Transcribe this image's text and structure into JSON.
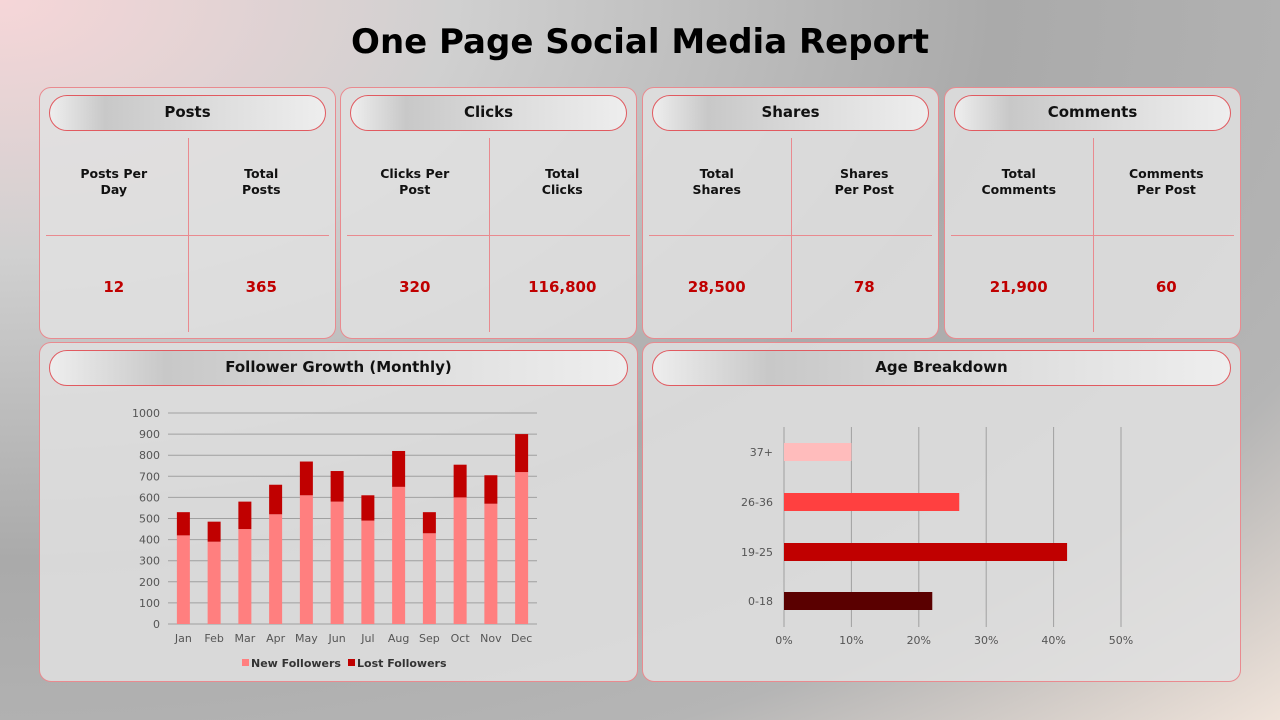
{
  "title": "One Page Social Media Report",
  "cards": [
    {
      "title": "Posts",
      "metrics": [
        {
          "label": "Posts Per\nDay",
          "value": "12"
        },
        {
          "label": "Total\nPosts",
          "value": "365"
        }
      ]
    },
    {
      "title": "Clicks",
      "metrics": [
        {
          "label": "Clicks Per\nPost",
          "value": "320"
        },
        {
          "label": "Total\nClicks",
          "value": "116,800"
        }
      ]
    },
    {
      "title": "Shares",
      "metrics": [
        {
          "label": "Total\nShares",
          "value": "28,500"
        },
        {
          "label": "Shares\nPer Post",
          "value": "78"
        }
      ]
    },
    {
      "title": "Comments",
      "metrics": [
        {
          "label": "Total\nComments",
          "value": "21,900"
        },
        {
          "label": "Comments\nPer Post",
          "value": "60"
        }
      ]
    }
  ],
  "follower_panel": {
    "title": "Follower Growth (Monthly)"
  },
  "age_panel": {
    "title": "Age Breakdown"
  },
  "chart_data": [
    {
      "type": "bar",
      "stacked": true,
      "categories": [
        "Jan",
        "Feb",
        "Mar",
        "Apr",
        "May",
        "Jun",
        "Jul",
        "Aug",
        "Sep",
        "Oct",
        "Nov",
        "Dec"
      ],
      "series": [
        {
          "name": "New Followers",
          "color": "#ff7f7f",
          "values": [
            420,
            390,
            450,
            520,
            610,
            580,
            490,
            650,
            430,
            600,
            570,
            720
          ]
        },
        {
          "name": "Lost Followers",
          "color": "#c00000",
          "values": [
            110,
            95,
            130,
            140,
            160,
            145,
            120,
            170,
            100,
            155,
            135,
            180
          ]
        }
      ],
      "ylim": [
        0,
        1000
      ],
      "yticks": [
        0,
        100,
        200,
        300,
        400,
        500,
        600,
        700,
        800,
        900,
        1000
      ],
      "grid": true,
      "legend": "bottom"
    },
    {
      "type": "bar",
      "orientation": "horizontal",
      "categories": [
        "37+",
        "26-36",
        "19-25",
        "0-18"
      ],
      "values": [
        10,
        26,
        42,
        22
      ],
      "colors": [
        "#ffbcbc",
        "#ff4040",
        "#c00000",
        "#5a0000"
      ],
      "xlim": [
        0,
        50
      ],
      "xticks": [
        "0%",
        "10%",
        "20%",
        "30%",
        "40%",
        "50%"
      ],
      "grid": true
    }
  ]
}
